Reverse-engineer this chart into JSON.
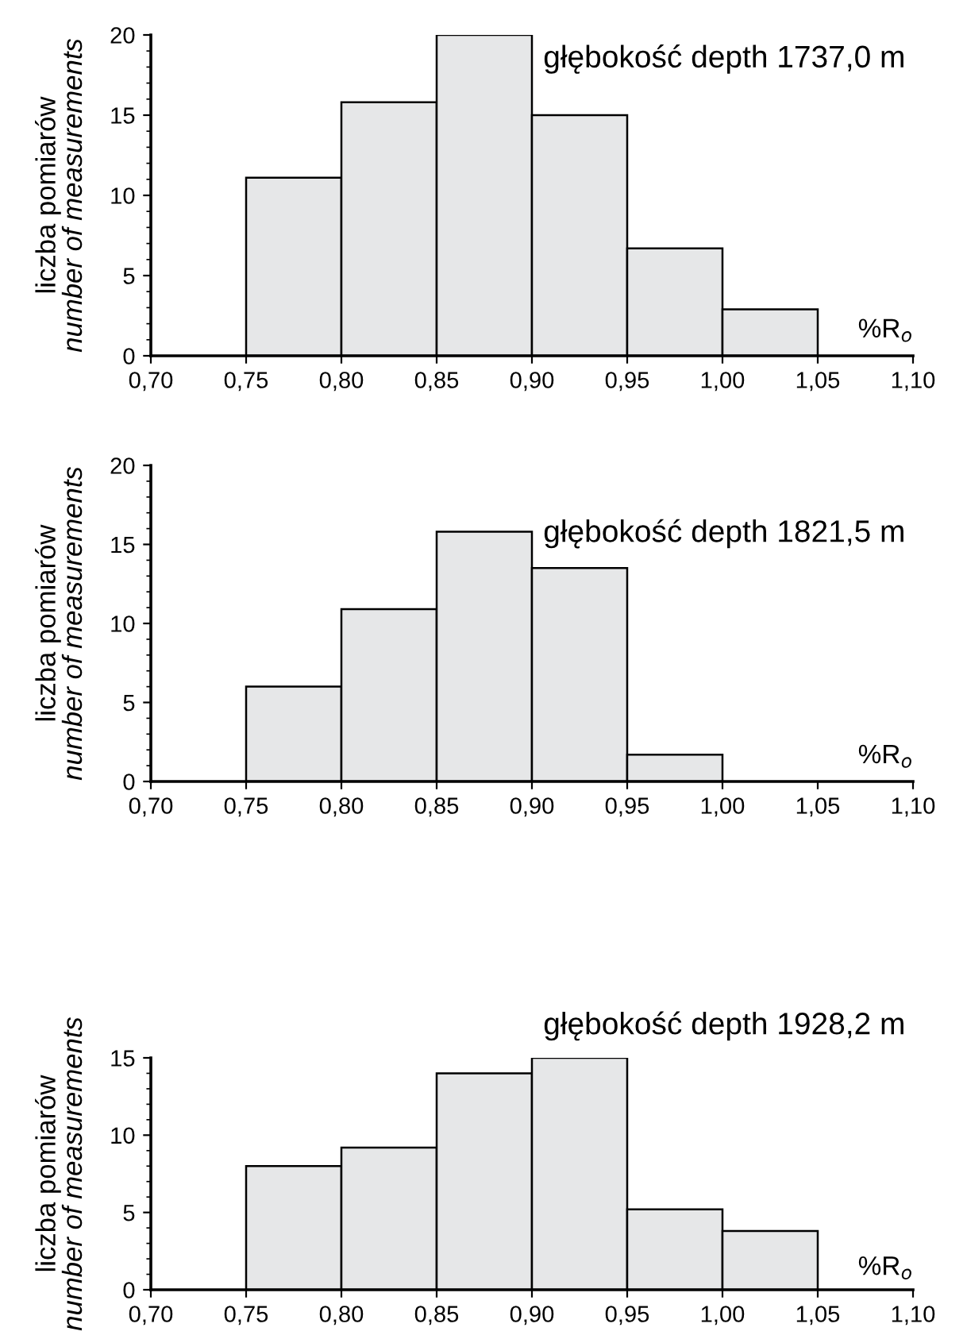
{
  "chart_data": [
    {
      "type": "histogram",
      "title": "głębokość depth 1737,0 m",
      "xlabel": "%R$_{o}$",
      "ylabel": "liczba pomiarów\nnumber of measurements",
      "bins": [
        0.75,
        0.8,
        0.85,
        0.9,
        0.95,
        1.0,
        1.05
      ],
      "values": [
        11.1,
        15.8,
        20,
        15,
        6.7,
        2.9
      ],
      "color": "#e6e7e8",
      "xlim": [
        0.7,
        1.1
      ],
      "xticks": [
        {
          "value": 0.7,
          "label": "0,70"
        },
        {
          "value": 0.75,
          "label": "0,75"
        },
        {
          "value": 0.8,
          "label": "0,80"
        },
        {
          "value": 0.85,
          "label": "0,85"
        },
        {
          "value": 0.9,
          "label": "0,90"
        },
        {
          "value": 0.95,
          "label": "0,95"
        },
        {
          "value": 1.0,
          "label": "1,00"
        },
        {
          "value": 1.05,
          "label": "1,05"
        },
        {
          "value": 1.1,
          "label": "1,10"
        }
      ],
      "ylim": [
        0,
        20
      ],
      "yticks": [
        0,
        5,
        10,
        15,
        20
      ],
      "grid": false
    },
    {
      "type": "histogram",
      "title": "głębokość depth 1821,5 m",
      "xlabel": "%R$_{o}$",
      "ylabel": "liczba pomiarów\nnumber of measurements",
      "bins": [
        0.75,
        0.8,
        0.85,
        0.9,
        0.95,
        1.0
      ],
      "values": [
        6,
        10.9,
        15.8,
        13.5,
        1.7
      ],
      "color": "#e6e7e8",
      "xlim": [
        0.7,
        1.1
      ],
      "xticks": [
        {
          "value": 0.7,
          "label": "0,70"
        },
        {
          "value": 0.75,
          "label": "0,75"
        },
        {
          "value": 0.8,
          "label": "0,80"
        },
        {
          "value": 0.85,
          "label": "0,85"
        },
        {
          "value": 0.9,
          "label": "0,90"
        },
        {
          "value": 0.95,
          "label": "0,95"
        },
        {
          "value": 1.0,
          "label": "1,00"
        },
        {
          "value": 1.05,
          "label": "1,05"
        },
        {
          "value": 1.1,
          "label": "1,10"
        }
      ],
      "ylim": [
        0,
        20
      ],
      "yticks": [
        0,
        5,
        10,
        15,
        20
      ],
      "grid": false
    },
    {
      "type": "histogram",
      "title": "głębokość depth 1928,2 m",
      "xlabel": "%R$_{o}$",
      "ylabel": "liczba pomiarów\nnumber of measurements",
      "bins": [
        0.75,
        0.8,
        0.85,
        0.9,
        0.95,
        1.0,
        1.05
      ],
      "values": [
        8,
        9.2,
        14,
        15,
        5.2,
        3.8
      ],
      "color": "#e6e7e8",
      "xlim": [
        0.7,
        1.1
      ],
      "xticks": [
        {
          "value": 0.7,
          "label": "0,70"
        },
        {
          "value": 0.75,
          "label": "0,75"
        },
        {
          "value": 0.8,
          "label": "0,80"
        },
        {
          "value": 0.85,
          "label": "0,85"
        },
        {
          "value": 0.9,
          "label": "0,90"
        },
        {
          "value": 0.95,
          "label": "0,95"
        },
        {
          "value": 1.0,
          "label": "1,00"
        },
        {
          "value": 1.05,
          "label": "1,05"
        },
        {
          "value": 1.1,
          "label": "1,10"
        }
      ],
      "ylim": [
        0,
        15
      ],
      "yticks": [
        0,
        5,
        10,
        15
      ],
      "grid": false
    }
  ]
}
